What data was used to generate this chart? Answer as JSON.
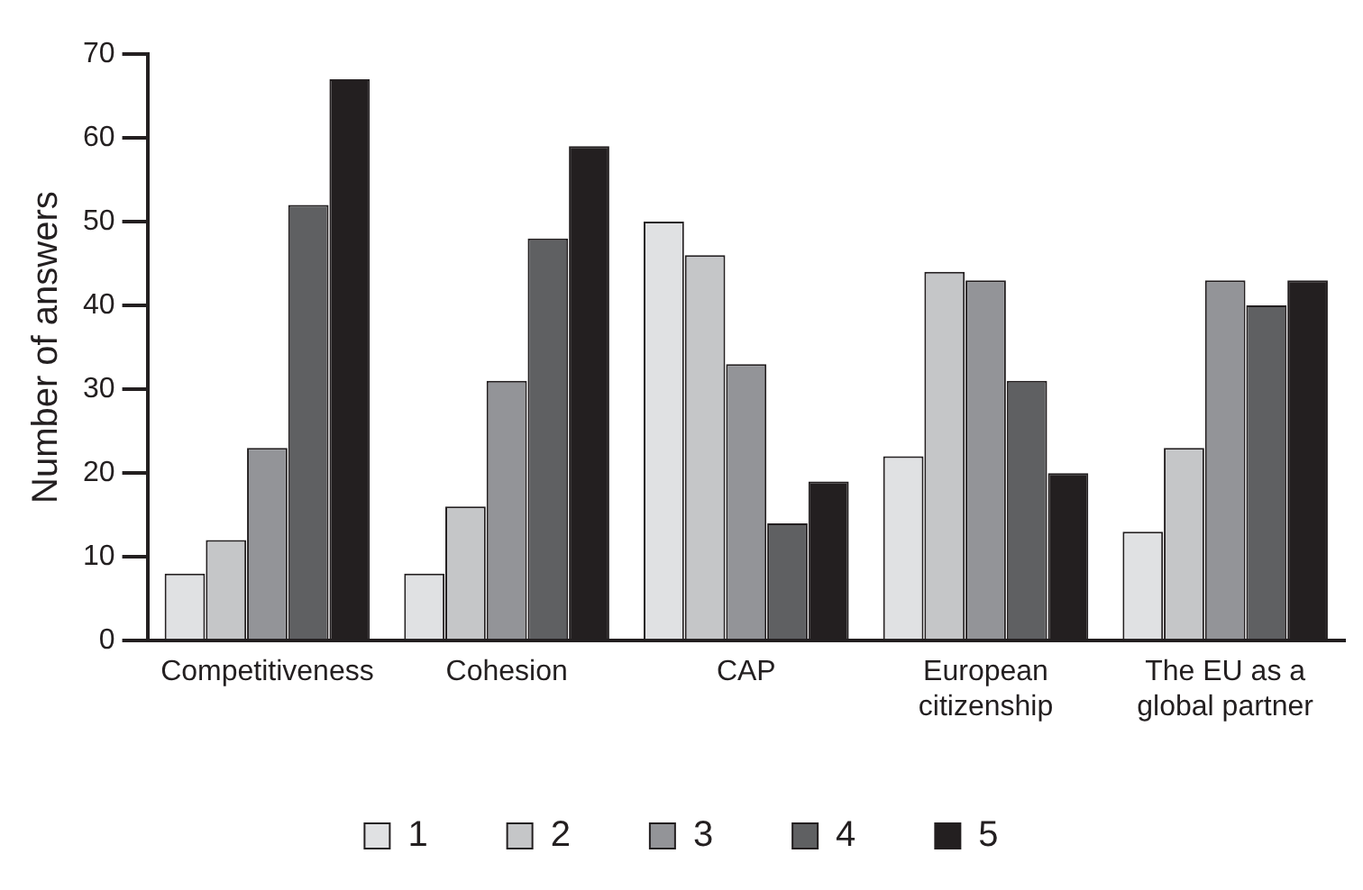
{
  "chart_data": {
    "type": "bar",
    "ylabel": "Number of answers",
    "categories": [
      "Competitiveness",
      "Cohesion",
      "CAP",
      "European citizenship",
      "The EU as a global partner"
    ],
    "series": [
      {
        "name": "1",
        "color": "#e0e1e3",
        "values": [
          8,
          8,
          50,
          22,
          13
        ]
      },
      {
        "name": "2",
        "color": "#c5c6c8",
        "values": [
          12,
          16,
          46,
          44,
          23
        ]
      },
      {
        "name": "3",
        "color": "#939498",
        "values": [
          23,
          31,
          33,
          43,
          43
        ]
      },
      {
        "name": "4",
        "color": "#5f6062",
        "values": [
          52,
          48,
          14,
          31,
          40
        ]
      },
      {
        "name": "5",
        "color": "#231f20",
        "values": [
          67,
          59,
          19,
          20,
          43
        ]
      }
    ],
    "ylim": [
      0,
      70
    ],
    "yticks": [
      0,
      10,
      20,
      30,
      40,
      50,
      60,
      70
    ],
    "grid": false,
    "legend": "bottom"
  }
}
